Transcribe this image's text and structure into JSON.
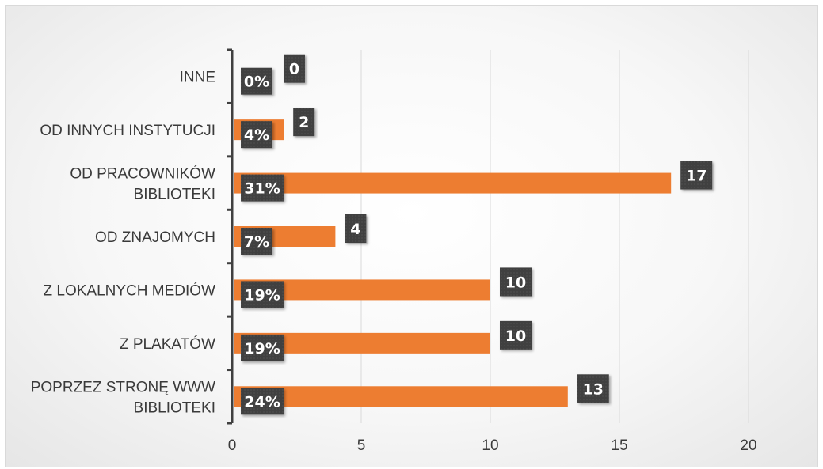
{
  "chart_data": {
    "type": "bar",
    "orientation": "horizontal",
    "categories": [
      [
        "INNE"
      ],
      [
        "OD INNYCH INSTYTUCJI"
      ],
      [
        "OD PRACOWNIKÓW",
        "BIBLIOTEKI"
      ],
      [
        "OD ZNAJOMYCH"
      ],
      [
        "Z LOKALNYCH MEDIÓW"
      ],
      [
        "Z PLAKATÓW"
      ],
      [
        "POPRZEZ STRONĘ WWW",
        "BIBLIOTEKI"
      ]
    ],
    "values": [
      0,
      2,
      17,
      4,
      10,
      10,
      13
    ],
    "percent_labels": [
      "0%",
      "4%",
      "31%",
      "7%",
      "19%",
      "19%",
      "24%"
    ],
    "value_labels": [
      "0",
      "2",
      "17",
      "4",
      "10",
      "10",
      "13"
    ],
    "xlim": [
      0,
      20
    ],
    "xticks": [
      0,
      5,
      10,
      15,
      20
    ],
    "xtick_labels": [
      "0",
      "5",
      "10",
      "15",
      "20"
    ],
    "grid": "vertical",
    "legend": "none",
    "colors": {
      "bar": "#ed7d31",
      "label_box": "#404040",
      "grid": "#d9d9d9",
      "axis": "#404040"
    }
  }
}
